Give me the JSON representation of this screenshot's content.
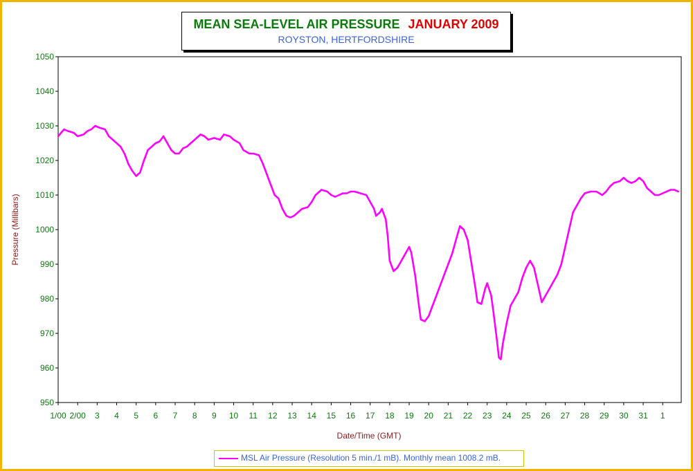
{
  "title": {
    "main": "MEAN SEA-LEVEL AIR PRESSURE",
    "period": "JANUARY 2009",
    "location": "ROYSTON, HERTFORDSHIRE"
  },
  "colors": {
    "frame": "#f0b400",
    "title_green": "#0a7a0a",
    "title_red": "#e00000",
    "title_blue": "#3a64d8",
    "tick_label": "#0a7a0a",
    "axis_title": "#8b1a1a",
    "series": "#ff00ff",
    "grid": "#000000"
  },
  "legend_text": "MSL Air Pressure (Resolution 5 min./1 mB). Monthly mean 1008.2 mB.",
  "chart_data": {
    "type": "line",
    "title": "MEAN SEA-LEVEL AIR PRESSURE JANUARY 2009",
    "subtitle": "ROYSTON, HERTFORDSHIRE",
    "xlabel": "Date/Time (GMT)",
    "ylabel": "Pressure (Millibars)",
    "ylim": [
      950,
      1050
    ],
    "yticks": [
      950,
      960,
      970,
      980,
      990,
      1000,
      1010,
      1020,
      1030,
      1040,
      1050
    ],
    "xlim": [
      1,
      32
    ],
    "xticks": [
      {
        "x": 1,
        "label": "1/00"
      },
      {
        "x": 2,
        "label": "2/00"
      },
      {
        "x": 3,
        "label": "3"
      },
      {
        "x": 4,
        "label": "4"
      },
      {
        "x": 5,
        "label": "5"
      },
      {
        "x": 6,
        "label": "6"
      },
      {
        "x": 7,
        "label": "7"
      },
      {
        "x": 8,
        "label": "8"
      },
      {
        "x": 9,
        "label": "9"
      },
      {
        "x": 10,
        "label": "10"
      },
      {
        "x": 11,
        "label": "11"
      },
      {
        "x": 12,
        "label": "12"
      },
      {
        "x": 13,
        "label": "13"
      },
      {
        "x": 14,
        "label": "14"
      },
      {
        "x": 15,
        "label": "15"
      },
      {
        "x": 16,
        "label": "16"
      },
      {
        "x": 17,
        "label": "17"
      },
      {
        "x": 18,
        "label": "18"
      },
      {
        "x": 19,
        "label": "19"
      },
      {
        "x": 20,
        "label": "20"
      },
      {
        "x": 21,
        "label": "21"
      },
      {
        "x": 22,
        "label": "22"
      },
      {
        "x": 23,
        "label": "23"
      },
      {
        "x": 24,
        "label": "24"
      },
      {
        "x": 25,
        "label": "25"
      },
      {
        "x": 26,
        "label": "26"
      },
      {
        "x": 27,
        "label": "27"
      },
      {
        "x": 28,
        "label": "28"
      },
      {
        "x": 29,
        "label": "29"
      },
      {
        "x": 30,
        "label": "30"
      },
      {
        "x": 31,
        "label": "31"
      },
      {
        "x": 32,
        "label": "1"
      }
    ],
    "grid": true,
    "legend_position": "bottom-center",
    "series": [
      {
        "name": "MSL Air Pressure (Resolution 5 min./1 mB). Monthly mean 1008.2 mB.",
        "color": "#ff00ff",
        "points": [
          [
            1.0,
            1027
          ],
          [
            1.3,
            1029
          ],
          [
            1.5,
            1028.5
          ],
          [
            1.8,
            1028
          ],
          [
            2.0,
            1027
          ],
          [
            2.3,
            1027.5
          ],
          [
            2.5,
            1028.5
          ],
          [
            2.7,
            1029
          ],
          [
            2.9,
            1030
          ],
          [
            3.1,
            1029.5
          ],
          [
            3.4,
            1029
          ],
          [
            3.6,
            1027
          ],
          [
            3.8,
            1026
          ],
          [
            4.0,
            1025
          ],
          [
            4.2,
            1024
          ],
          [
            4.4,
            1022
          ],
          [
            4.6,
            1019
          ],
          [
            4.8,
            1017
          ],
          [
            5.0,
            1015.5
          ],
          [
            5.2,
            1016.5
          ],
          [
            5.4,
            1020
          ],
          [
            5.6,
            1023
          ],
          [
            5.8,
            1024
          ],
          [
            6.0,
            1025
          ],
          [
            6.2,
            1025.5
          ],
          [
            6.4,
            1027
          ],
          [
            6.6,
            1025
          ],
          [
            6.8,
            1023
          ],
          [
            7.0,
            1022
          ],
          [
            7.2,
            1022
          ],
          [
            7.4,
            1023.5
          ],
          [
            7.6,
            1024
          ],
          [
            7.8,
            1025
          ],
          [
            8.0,
            1026
          ],
          [
            8.3,
            1027.5
          ],
          [
            8.5,
            1027
          ],
          [
            8.7,
            1026
          ],
          [
            9.0,
            1026.5
          ],
          [
            9.3,
            1026
          ],
          [
            9.5,
            1027.5
          ],
          [
            9.8,
            1027
          ],
          [
            10.0,
            1026
          ],
          [
            10.3,
            1025
          ],
          [
            10.5,
            1023
          ],
          [
            10.8,
            1022
          ],
          [
            11.0,
            1022
          ],
          [
            11.3,
            1021.5
          ],
          [
            11.5,
            1019
          ],
          [
            11.7,
            1016
          ],
          [
            11.9,
            1013
          ],
          [
            12.1,
            1010
          ],
          [
            12.3,
            1009
          ],
          [
            12.5,
            1006
          ],
          [
            12.7,
            1004
          ],
          [
            12.9,
            1003.5
          ],
          [
            13.1,
            1004
          ],
          [
            13.3,
            1005
          ],
          [
            13.5,
            1006
          ],
          [
            13.8,
            1006.5
          ],
          [
            14.0,
            1008
          ],
          [
            14.2,
            1010
          ],
          [
            14.5,
            1011.5
          ],
          [
            14.8,
            1011
          ],
          [
            15.0,
            1010
          ],
          [
            15.2,
            1009.5
          ],
          [
            15.4,
            1010
          ],
          [
            15.6,
            1010.5
          ],
          [
            15.8,
            1010.5
          ],
          [
            16.0,
            1011
          ],
          [
            16.2,
            1011
          ],
          [
            16.5,
            1010.5
          ],
          [
            16.8,
            1010
          ],
          [
            17.0,
            1008
          ],
          [
            17.2,
            1006
          ],
          [
            17.3,
            1004
          ],
          [
            17.5,
            1005
          ],
          [
            17.6,
            1006
          ],
          [
            17.8,
            1003
          ],
          [
            17.9,
            998
          ],
          [
            18.0,
            991
          ],
          [
            18.2,
            988
          ],
          [
            18.4,
            989
          ],
          [
            18.6,
            991
          ],
          [
            18.8,
            993
          ],
          [
            19.0,
            995
          ],
          [
            19.1,
            993.5
          ],
          [
            19.3,
            987
          ],
          [
            19.5,
            978
          ],
          [
            19.6,
            974
          ],
          [
            19.8,
            973.5
          ],
          [
            20.0,
            975
          ],
          [
            20.2,
            978
          ],
          [
            20.4,
            981
          ],
          [
            20.6,
            984
          ],
          [
            20.8,
            987
          ],
          [
            21.0,
            990
          ],
          [
            21.2,
            993
          ],
          [
            21.4,
            997
          ],
          [
            21.6,
            1001
          ],
          [
            21.8,
            1000
          ],
          [
            22.0,
            997
          ],
          [
            22.2,
            990
          ],
          [
            22.4,
            983
          ],
          [
            22.5,
            979
          ],
          [
            22.7,
            978.5
          ],
          [
            22.9,
            983
          ],
          [
            23.0,
            984.5
          ],
          [
            23.2,
            981
          ],
          [
            23.3,
            977
          ],
          [
            23.5,
            968
          ],
          [
            23.6,
            963
          ],
          [
            23.7,
            962.5
          ],
          [
            23.8,
            967
          ],
          [
            24.0,
            973
          ],
          [
            24.2,
            978
          ],
          [
            24.4,
            980
          ],
          [
            24.6,
            982
          ],
          [
            24.8,
            986
          ],
          [
            25.0,
            989
          ],
          [
            25.2,
            991
          ],
          [
            25.4,
            989
          ],
          [
            25.6,
            984
          ],
          [
            25.8,
            979
          ],
          [
            26.0,
            981
          ],
          [
            26.2,
            983
          ],
          [
            26.4,
            985
          ],
          [
            26.6,
            987
          ],
          [
            26.8,
            990
          ],
          [
            27.0,
            995
          ],
          [
            27.2,
            1000
          ],
          [
            27.4,
            1005
          ],
          [
            27.6,
            1007
          ],
          [
            27.8,
            1009
          ],
          [
            28.0,
            1010.5
          ],
          [
            28.3,
            1011
          ],
          [
            28.6,
            1011
          ],
          [
            28.9,
            1010
          ],
          [
            29.1,
            1011
          ],
          [
            29.3,
            1012.5
          ],
          [
            29.5,
            1013.5
          ],
          [
            29.8,
            1014
          ],
          [
            30.0,
            1015
          ],
          [
            30.2,
            1014
          ],
          [
            30.4,
            1013.5
          ],
          [
            30.6,
            1014
          ],
          [
            30.8,
            1015
          ],
          [
            31.0,
            1014
          ],
          [
            31.2,
            1012
          ],
          [
            31.4,
            1011
          ],
          [
            31.6,
            1010
          ],
          [
            31.8,
            1010
          ],
          [
            32.0,
            1010.5
          ],
          [
            32.2,
            1011
          ],
          [
            32.4,
            1011.5
          ],
          [
            32.6,
            1011.5
          ],
          [
            32.8,
            1011
          ]
        ]
      }
    ]
  }
}
